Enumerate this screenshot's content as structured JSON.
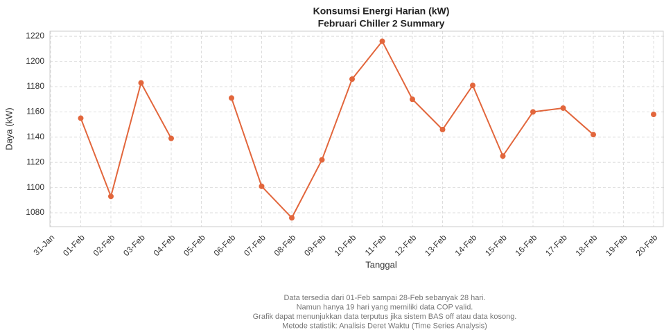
{
  "chart_data": {
    "type": "line",
    "title": "Konsumsi Energi Harian (kW)",
    "subtitle": "Februari Chiller 2 Summary",
    "xlabel": "Tanggal",
    "ylabel": "Daya (kW)",
    "categories": [
      "31-Jan",
      "01-Feb",
      "02-Feb",
      "03-Feb",
      "04-Feb",
      "05-Feb",
      "06-Feb",
      "07-Feb",
      "08-Feb",
      "09-Feb",
      "10-Feb",
      "11-Feb",
      "12-Feb",
      "13-Feb",
      "14-Feb",
      "15-Feb",
      "16-Feb",
      "17-Feb",
      "18-Feb",
      "19-Feb",
      "20-Feb"
    ],
    "series": [
      {
        "name": "Daya",
        "color": "#e2663c",
        "values": [
          null,
          1155,
          1093,
          1183,
          1139,
          null,
          1171,
          1101,
          1076,
          1122,
          1186,
          1216,
          1170,
          1146,
          1181,
          1125,
          1160,
          1163,
          1142,
          null,
          1158
        ]
      }
    ],
    "ylim": [
      1069,
      1224
    ],
    "yticks": [
      1080,
      1100,
      1120,
      1140,
      1160,
      1180,
      1200,
      1220
    ],
    "grid": true,
    "notes": [
      "Data tersedia dari 01-Feb sampai 28-Feb sebanyak 28 hari.",
      "Namun hanya 19 hari yang memiliki data COP valid.",
      "Grafik dapat menunjukkan data terputus jika sistem BAS off atau data kosong.",
      "Metode statistik: Analisis Deret Waktu (Time Series Analysis)"
    ]
  }
}
